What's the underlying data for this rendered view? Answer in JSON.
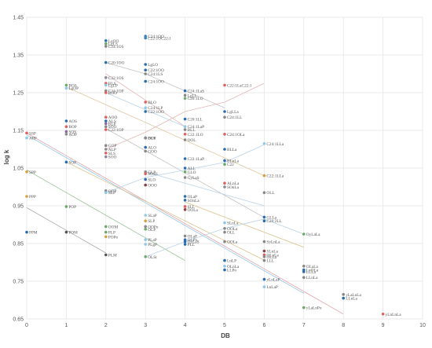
{
  "chart_data": {
    "type": "scatter",
    "title": "",
    "xlabel": "DB",
    "ylabel": "log  k",
    "xlim": [
      0,
      10
    ],
    "ylim": [
      0.65,
      1.45
    ],
    "x_ticks": [
      "0",
      "1",
      "2",
      "3",
      "4",
      "5",
      "6",
      "7",
      "8",
      "9",
      "10"
    ],
    "y_ticks": [
      "0.65",
      "0.75",
      "0.85",
      "0.95",
      "1.05",
      "1.15",
      "1.25",
      "1.35",
      "1.45"
    ],
    "grid": true,
    "series": [
      {
        "values": [
          [
            0,
            1.143
          ],
          [
            1,
            1.083
          ],
          [
            2,
            1.023
          ],
          [
            3,
            0.963
          ],
          [
            4,
            0.903
          ],
          [
            5,
            0.843
          ],
          [
            6,
            0.783
          ],
          [
            7,
            0.723
          ],
          [
            8,
            0.663
          ]
        ],
        "color": "#e2a3a8"
      },
      {
        "values": [
          [
            0,
            1.045
          ],
          [
            1,
            0.985
          ],
          [
            2,
            0.925
          ],
          [
            3,
            0.865
          ],
          [
            4,
            0.805
          ]
        ],
        "color": "#9bc49b"
      },
      {
        "values": [
          [
            0,
            0.945
          ],
          [
            1,
            0.885
          ],
          [
            2,
            0.825
          ]
        ],
        "color": "#aaaaaa"
      },
      {
        "values": [
          [
            0,
            1.138
          ],
          [
            1,
            1.078
          ],
          [
            2,
            1.018
          ],
          [
            3,
            0.958
          ],
          [
            4,
            0.898
          ],
          [
            5,
            0.838
          ],
          [
            6,
            0.778
          ],
          [
            7,
            0.718
          ]
        ],
        "color": "#8fc8e8"
      },
      {
        "values": [
          [
            1,
            1.066
          ],
          [
            2,
            1.014
          ],
          [
            3,
            0.962
          ],
          [
            4,
            0.91
          ],
          [
            5,
            0.858
          ],
          [
            6,
            0.806
          ]
        ],
        "color": "#d9c08a"
      },
      {
        "values": [
          [
            2,
            1.155
          ],
          [
            3,
            1.096
          ],
          [
            4,
            1.037
          ],
          [
            5,
            0.978
          ],
          [
            6,
            0.919
          ]
        ],
        "color": "#c3c3c3"
      },
      {
        "values": [
          [
            1,
            1.265
          ],
          [
            2,
            1.218
          ],
          [
            3,
            1.171
          ],
          [
            4,
            1.124
          ],
          [
            5,
            1.077
          ],
          [
            6,
            1.03
          ]
        ],
        "color": "#e0c8a0"
      },
      {
        "values": [
          [
            2,
            1.33
          ],
          [
            3,
            1.3
          ],
          [
            4,
            1.255
          ],
          [
            5,
            1.21
          ]
        ],
        "color": "#c3c3c3"
      },
      {
        "values": [
          [
            2,
            1.3
          ],
          [
            3,
            1.23
          ],
          [
            4,
            1.16
          ]
        ],
        "color": "#e5b6b6"
      },
      {
        "values": [
          [
            2,
            1.25
          ],
          [
            3,
            1.205
          ],
          [
            4,
            1.16
          ]
        ],
        "color": "#b9d2e6"
      },
      {
        "values": [
          [
            4,
            0.96
          ],
          [
            5,
            0.92
          ],
          [
            6,
            0.88
          ],
          [
            7,
            0.84
          ]
        ],
        "color": "#d9c08a"
      },
      {
        "values": [
          [
            3,
            1.04
          ],
          [
            4,
            1.01
          ],
          [
            5,
            0.98
          ],
          [
            6,
            0.95
          ]
        ],
        "color": "#b9d2e6"
      },
      {
        "values": [
          [
            2,
            0.985
          ],
          [
            3,
            1.025
          ],
          [
            4,
            1.045
          ],
          [
            5,
            1.065
          ],
          [
            6,
            1.112
          ]
        ],
        "color": "#b9d2e6"
      },
      {
        "values": [
          [
            2,
            1.1
          ],
          [
            3,
            1.145
          ],
          [
            4,
            1.2
          ],
          [
            5,
            1.225
          ],
          [
            6,
            1.275
          ]
        ],
        "color": "#e5b6b6"
      },
      {
        "values": [
          [
            3,
            0.815
          ],
          [
            4,
            0.855
          ],
          [
            5,
            0.89
          ],
          [
            6,
            0.915
          ],
          [
            7,
            0.875
          ]
        ],
        "color": "#b9d2e6"
      }
    ],
    "points": [
      {
        "label": "C24:1OO",
        "x": 3,
        "y": 1.4,
        "color": "#3a7fc1"
      },
      {
        "label": "C22:1OC22:1",
        "x": 3,
        "y": 1.395,
        "color": "#3a7fc1"
      },
      {
        "label": "LgOO",
        "x": 2,
        "y": 1.388,
        "color": "#2a6cb0"
      },
      {
        "label": "LgLS",
        "x": 2,
        "y": 1.38,
        "color": "#6aaa6a"
      },
      {
        "label": "C24:1OS",
        "x": 2,
        "y": 1.373,
        "color": "#888888"
      },
      {
        "label": "C20:1OO",
        "x": 2,
        "y": 1.33,
        "color": "#2a6cb0"
      },
      {
        "label": "LgLO",
        "x": 3,
        "y": 1.325,
        "color": "#2a6cb0"
      },
      {
        "label": "C22:1OO",
        "x": 3,
        "y": 1.31,
        "color": "#2a6cb0"
      },
      {
        "label": "C24:1LS",
        "x": 3,
        "y": 1.3,
        "color": "#888888"
      },
      {
        "label": "C22:1OS",
        "x": 2,
        "y": 1.29,
        "color": "#8a8aa0"
      },
      {
        "label": "C24:1OO",
        "x": 3,
        "y": 1.28,
        "color": "#2a6cb0"
      },
      {
        "label": "BLS",
        "x": 2,
        "y": 1.275,
        "color": "#e06060"
      },
      {
        "label": "LgLP",
        "x": 2,
        "y": 1.27,
        "color": "#8fc8e8"
      },
      {
        "label": "BOS",
        "x": 1,
        "y": 1.27,
        "color": "#6aaa6a"
      },
      {
        "label": "LgOP",
        "x": 1,
        "y": 1.262,
        "color": "#8fc8e8"
      },
      {
        "label": "C24:1OP",
        "x": 2,
        "y": 1.255,
        "color": "#888888"
      },
      {
        "label": "BOO",
        "x": 2,
        "y": 1.25,
        "color": "#e06060"
      },
      {
        "label": "C24:1LaS",
        "x": 4,
        "y": 1.255,
        "color": "#2a6cb0"
      },
      {
        "label": "LgLL",
        "x": 4,
        "y": 1.243,
        "color": "#888888"
      },
      {
        "label": "C20:1LO",
        "x": 4,
        "y": 1.235,
        "color": "#6aaa6a"
      },
      {
        "label": "C22:1LaC22:1",
        "x": 5,
        "y": 1.27,
        "color": "#e06060"
      },
      {
        "label": "BLO",
        "x": 3,
        "y": 1.225,
        "color": "#e06060"
      },
      {
        "label": "C24:1LP",
        "x": 3,
        "y": 1.21,
        "color": "#8fc8e8"
      },
      {
        "label": "C22:1OO",
        "x": 3,
        "y": 1.2,
        "color": "#2a6cb0"
      },
      {
        "label": "LgLLa",
        "x": 5,
        "y": 1.2,
        "color": "#2a6cb0"
      },
      {
        "label": "C24:1LL",
        "x": 5,
        "y": 1.185,
        "color": "#888888"
      },
      {
        "label": "AOO",
        "x": 2,
        "y": 1.185,
        "color": "#e06060"
      },
      {
        "label": "ALS",
        "x": 2,
        "y": 1.175,
        "color": "#2a6cb0"
      },
      {
        "label": "BLP",
        "x": 2,
        "y": 1.168,
        "color": "#8a6a9a"
      },
      {
        "label": "SOO",
        "x": 2,
        "y": 1.16,
        "color": "#888888"
      },
      {
        "label": "C22:1OP",
        "x": 2,
        "y": 1.152,
        "color": "#e06060"
      },
      {
        "label": "AOS",
        "x": 1,
        "y": 1.175,
        "color": "#2a6cb0"
      },
      {
        "label": "BOP",
        "x": 1,
        "y": 1.16,
        "color": "#e06060"
      },
      {
        "label": "SOS",
        "x": 1,
        "y": 1.147,
        "color": "#8a6a9a"
      },
      {
        "label": "AOP",
        "x": 1,
        "y": 1.14,
        "color": "#888888"
      },
      {
        "label": "SSP",
        "x": 0,
        "y": 1.143,
        "color": "#e06060"
      },
      {
        "label": "APP",
        "x": 0,
        "y": 1.13,
        "color": "#8fc8e8"
      },
      {
        "label": "C20:1LL",
        "x": 4,
        "y": 1.18,
        "color": "#2a6cb0"
      },
      {
        "label": "C24:1LaP",
        "x": 4,
        "y": 1.16,
        "color": "#8fc8e8"
      },
      {
        "label": "BLL",
        "x": 4,
        "y": 1.152,
        "color": "#888888"
      },
      {
        "label": "C22:1LO",
        "x": 4,
        "y": 1.14,
        "color": "#e06060"
      },
      {
        "label": "OLS",
        "x": 3,
        "y": 1.13,
        "color": "#2a6cb0"
      },
      {
        "label": "BOP",
        "x": 3,
        "y": 1.13,
        "color": "#888888"
      },
      {
        "label": "C24:1OLa",
        "x": 5,
        "y": 1.14,
        "color": "#e06060"
      },
      {
        "label": "C24:1LLa",
        "x": 6,
        "y": 1.115,
        "color": "#8fc8e8"
      },
      {
        "label": "OOL",
        "x": 4,
        "y": 1.125,
        "color": "#888888"
      },
      {
        "label": "BLLa",
        "x": 5,
        "y": 1.1,
        "color": "#2a6cb0"
      },
      {
        "label": "GOP",
        "x": 2,
        "y": 1.11,
        "color": "#888888"
      },
      {
        "label": "ALP",
        "x": 2,
        "y": 1.1,
        "color": "#888888"
      },
      {
        "label": "SLS",
        "x": 2,
        "y": 1.09,
        "color": "#e06060"
      },
      {
        "label": "SOO",
        "x": 2,
        "y": 1.08,
        "color": "#8a8aa0"
      },
      {
        "label": "ALO",
        "x": 3,
        "y": 1.105,
        "color": "#2a6cb0"
      },
      {
        "label": "GOO",
        "x": 3,
        "y": 1.095,
        "color": "#888888"
      },
      {
        "label": "SOP",
        "x": 1,
        "y": 1.066,
        "color": "#2a6cb0"
      },
      {
        "label": "C22:1LaP",
        "x": 4,
        "y": 1.075,
        "color": "#2a6cb0"
      },
      {
        "label": "BLnLa",
        "x": 5,
        "y": 1.07,
        "color": "#2a6cb0"
      },
      {
        "label": "C22",
        "x": 5,
        "y": 1.06,
        "color": "#6aaa6a"
      },
      {
        "label": "C22:1LLa",
        "x": 6,
        "y": 1.03,
        "color": "#d9a040"
      },
      {
        "label": "GLP",
        "x": 3,
        "y": 1.04,
        "color": "#888888"
      },
      {
        "label": "SOSS",
        "x": 3,
        "y": 1.035,
        "color": "#e06060"
      },
      {
        "label": "ALL",
        "x": 4,
        "y": 1.05,
        "color": "#2a6cb0"
      },
      {
        "label": "GLO",
        "x": 4,
        "y": 1.04,
        "color": "#6aaa6a"
      },
      {
        "label": "GyLaS",
        "x": 4,
        "y": 1.025,
        "color": "#888888"
      },
      {
        "label": "ODP",
        "x": 2,
        "y": 0.99,
        "color": "#888888"
      },
      {
        "label": "SLP",
        "x": 2,
        "y": 0.985,
        "color": "#8fc8e8"
      },
      {
        "label": "SLO",
        "x": 3,
        "y": 1.02,
        "color": "#2a6cb0"
      },
      {
        "label": "OOO",
        "x": 3,
        "y": 1.005,
        "color": "#8a4040"
      },
      {
        "label": "ALnLa",
        "x": 5,
        "y": 1.01,
        "color": "#e06060"
      },
      {
        "label": "SOnLa",
        "x": 5,
        "y": 1.0,
        "color": "#888888"
      },
      {
        "label": "OLL",
        "x": 6,
        "y": 0.985,
        "color": "#888888"
      },
      {
        "label": "OLaP",
        "x": 4,
        "y": 0.975,
        "color": "#2a6cb0"
      },
      {
        "label": "SOnLa",
        "x": 4,
        "y": 0.965,
        "color": "#2a6cb0"
      },
      {
        "label": "SPP",
        "x": 0,
        "y": 1.04,
        "color": "#d9a040"
      },
      {
        "label": "PPP",
        "x": 0,
        "y": 0.975,
        "color": "#d9a040"
      },
      {
        "label": "POP",
        "x": 1,
        "y": 0.948,
        "color": "#6aaa6a"
      },
      {
        "label": "SLL",
        "x": 4,
        "y": 0.948,
        "color": "#e06060"
      },
      {
        "label": "OOLa",
        "x": 4,
        "y": 0.94,
        "color": "#8a4040"
      },
      {
        "label": "SLaP",
        "x": 3,
        "y": 0.925,
        "color": "#8fc8e8"
      },
      {
        "label": "SLP",
        "x": 3,
        "y": 0.91,
        "color": "#d9a040"
      },
      {
        "label": "GLLa",
        "x": 6,
        "y": 0.92,
        "color": "#2a6cb0"
      },
      {
        "label": "C20:2LL",
        "x": 6,
        "y": 0.91,
        "color": "#2a6cb0"
      },
      {
        "label": "OOPo",
        "x": 3,
        "y": 0.895,
        "color": "#888888"
      },
      {
        "label": "OLP",
        "x": 3,
        "y": 0.888,
        "color": "#6aaa6a"
      },
      {
        "label": "OOM",
        "x": 2,
        "y": 0.895,
        "color": "#6aaa6a"
      },
      {
        "label": "PLP",
        "x": 2,
        "y": 0.88,
        "color": "#6aaa6a"
      },
      {
        "label": "POPo",
        "x": 2,
        "y": 0.868,
        "color": "#d9a040"
      },
      {
        "label": "SLnLa",
        "x": 5,
        "y": 0.905,
        "color": "#8fc8e8"
      },
      {
        "label": "OOLa",
        "x": 5,
        "y": 0.89,
        "color": "#888888"
      },
      {
        "label": "OLL",
        "x": 5,
        "y": 0.88,
        "color": "#888888"
      },
      {
        "label": "PPM",
        "x": 0,
        "y": 0.88,
        "color": "#2a6cb0"
      },
      {
        "label": "POM",
        "x": 1,
        "y": 0.88,
        "color": "#555555"
      },
      {
        "label": "OLaP",
        "x": 4,
        "y": 0.87,
        "color": "#888888"
      },
      {
        "label": "OLPo",
        "x": 4,
        "y": 0.86,
        "color": "#2a6cb0"
      },
      {
        "label": "OyLaS",
        "x": 4,
        "y": 0.855,
        "color": "#2a6cb0"
      },
      {
        "label": "PLL",
        "x": 4,
        "y": 0.848,
        "color": "#2a6cb0"
      },
      {
        "label": "PLaP",
        "x": 3,
        "y": 0.86,
        "color": "#8fc8e8"
      },
      {
        "label": "PLgP",
        "x": 3,
        "y": 0.848,
        "color": "#8fc8e8"
      },
      {
        "label": "OOLa",
        "x": 5,
        "y": 0.855,
        "color": "#888888"
      },
      {
        "label": "OyLaLa",
        "x": 7,
        "y": 0.875,
        "color": "#6aaa6a"
      },
      {
        "label": "SyLnLa",
        "x": 6,
        "y": 0.855,
        "color": "#888888"
      },
      {
        "label": "SLnLa",
        "x": 6,
        "y": 0.83,
        "color": "#8a4040"
      },
      {
        "label": "OLnLa",
        "x": 6,
        "y": 0.82,
        "color": "#e06060"
      },
      {
        "label": "OLLa",
        "x": 6,
        "y": 0.815,
        "color": "#888888"
      },
      {
        "label": "LLL",
        "x": 6,
        "y": 0.805,
        "color": "#888888"
      },
      {
        "label": "PLM",
        "x": 2,
        "y": 0.82,
        "color": "#555555"
      },
      {
        "label": "OLSt",
        "x": 3,
        "y": 0.815,
        "color": "#6aaa6a"
      },
      {
        "label": "LnLP",
        "x": 5,
        "y": 0.805,
        "color": "#2a6cb0"
      },
      {
        "label": "OLnLa",
        "x": 5,
        "y": 0.79,
        "color": "#8fc8e8"
      },
      {
        "label": "LLPo",
        "x": 5,
        "y": 0.78,
        "color": "#2a6cb0"
      },
      {
        "label": "OLaLa",
        "x": 7,
        "y": 0.79,
        "color": "#888888"
      },
      {
        "label": "LnOLa",
        "x": 7,
        "y": 0.78,
        "color": "#2a6cb0"
      },
      {
        "label": "LLLa",
        "x": 7,
        "y": 0.775,
        "color": "#2a6cb0"
      },
      {
        "label": "LLnLa",
        "x": 7,
        "y": 0.76,
        "color": "#888888"
      },
      {
        "label": "yLnLaP",
        "x": 6,
        "y": 0.755,
        "color": "#2a6cb0"
      },
      {
        "label": "LnLaP",
        "x": 6,
        "y": 0.735,
        "color": "#8fc8e8"
      },
      {
        "label": "yLaLnLa",
        "x": 8,
        "y": 0.715,
        "color": "#888888"
      },
      {
        "label": "LLnLa",
        "x": 8,
        "y": 0.705,
        "color": "#2a6cb0"
      },
      {
        "label": "yLaLnPo",
        "x": 7,
        "y": 0.68,
        "color": "#6aaa6a"
      },
      {
        "label": "yLnLnLa",
        "x": 9,
        "y": 0.663,
        "color": "#e06060"
      }
    ]
  }
}
